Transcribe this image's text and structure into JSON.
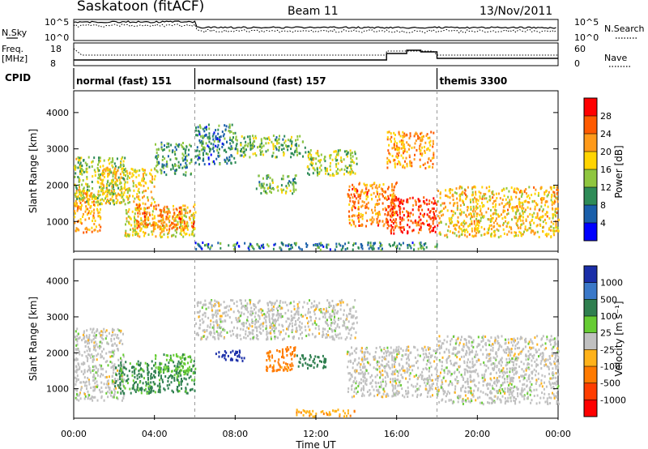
{
  "header": {
    "station": "Saskatoon (fitACF)",
    "beam": "Beam 11",
    "date": "13/Nov/2011"
  },
  "aux_panels": {
    "nsky_label": "N.Sky",
    "nsearch_label": "N.Search",
    "count_ticks": [
      "10^5",
      "10^0"
    ],
    "freq_label_1": "Freq.",
    "freq_label_2": "[MHz]",
    "freq_ticks": [
      "18",
      "8"
    ],
    "nave_ticks": [
      "60",
      "0"
    ],
    "nave_label": "Nave"
  },
  "cpid": {
    "label": "CPID",
    "modes": [
      {
        "name": "normal (fast) 151",
        "start_hour": 0
      },
      {
        "name": "normalsound (fast) 157",
        "start_hour": 6
      },
      {
        "name": "themis 3300",
        "start_hour": 18
      }
    ]
  },
  "axes": {
    "y_label": "Slant Range [km]",
    "y_ticks": [
      1000,
      2000,
      3000,
      4000
    ],
    "x_ticks": [
      "00:00",
      "04:00",
      "08:00",
      "12:00",
      "16:00",
      "20:00",
      "00:00"
    ],
    "x_label": "Time UT"
  },
  "power_scale": {
    "label": "Power [dB]",
    "ticks": [
      "28",
      "24",
      "20",
      "16",
      "12",
      "8",
      "4"
    ],
    "colors": [
      "#ff0000",
      "#ff5a00",
      "#ff9a1a",
      "#ffd400",
      "#8fc63f",
      "#2e8b57",
      "#1a5faa",
      "#0000ff"
    ]
  },
  "velocity_scale": {
    "label": "Velocity [m s⁻¹]",
    "ticks": [
      "1000",
      "500",
      "100",
      "25",
      "-25",
      "-100",
      "-500",
      "-1000"
    ],
    "colors": [
      "#1a2ea8",
      "#3a78c8",
      "#2f7f4f",
      "#66cc33",
      "#c0c0c0",
      "#ffb21a",
      "#ff7a00",
      "#ff3d00",
      "#ff0000"
    ]
  },
  "chart_data": [
    {
      "type": "heatmap",
      "title": "Power",
      "xlabel": "Time UT",
      "ylabel": "Slant Range [km]",
      "x_range_hours": [
        0,
        24
      ],
      "ylim": [
        180,
        4600
      ],
      "color_range": [
        0,
        30
      ],
      "regions": [
        {
          "t": [
            0.0,
            1.3
          ],
          "r": [
            700,
            1900
          ],
          "value": 20
        },
        {
          "t": [
            0.0,
            2.5
          ],
          "r": [
            1500,
            2800
          ],
          "value": 14
        },
        {
          "t": [
            1.3,
            4.0
          ],
          "r": [
            1500,
            2500
          ],
          "value": 17
        },
        {
          "t": [
            2.5,
            6.0
          ],
          "r": [
            600,
            1400
          ],
          "value": 16
        },
        {
          "t": [
            3.0,
            6.0
          ],
          "r": [
            800,
            1500
          ],
          "value": 22
        },
        {
          "t": [
            4.0,
            5.8
          ],
          "r": [
            2300,
            3200
          ],
          "value": 10
        },
        {
          "t": [
            6.0,
            8.0
          ],
          "r": [
            2600,
            3700
          ],
          "value": 8
        },
        {
          "t": [
            8.0,
            11.5
          ],
          "r": [
            2800,
            3400
          ],
          "value": 12
        },
        {
          "t": [
            11.5,
            14.0
          ],
          "r": [
            2300,
            3000
          ],
          "value": 14
        },
        {
          "t": [
            13.5,
            16.0
          ],
          "r": [
            900,
            2100
          ],
          "value": 22
        },
        {
          "t": [
            15.5,
            18.0
          ],
          "r": [
            700,
            1700
          ],
          "value": 26
        },
        {
          "t": [
            9.0,
            11.0
          ],
          "r": [
            1800,
            2300
          ],
          "value": 12
        },
        {
          "t": [
            18.0,
            24.0
          ],
          "r": [
            600,
            2000
          ],
          "value": 18
        },
        {
          "t": [
            15.5,
            17.8
          ],
          "r": [
            2500,
            3500
          ],
          "value": 20
        },
        {
          "t": [
            6.0,
            18.0
          ],
          "r": [
            250,
            450
          ],
          "value": 8
        }
      ]
    },
    {
      "type": "heatmap",
      "title": "Velocity",
      "xlabel": "Time UT",
      "ylabel": "Slant Range [km]",
      "x_range_hours": [
        0,
        24
      ],
      "ylim": [
        180,
        4600
      ],
      "color_range": [
        -1000,
        1000
      ],
      "regions": [
        {
          "t": [
            0.0,
            2.5
          ],
          "r": [
            700,
            2700
          ],
          "value": 0
        },
        {
          "t": [
            2.0,
            6.0
          ],
          "r": [
            900,
            1800
          ],
          "value": 120
        },
        {
          "t": [
            4.0,
            5.8
          ],
          "r": [
            1400,
            2000
          ],
          "value": 80
        },
        {
          "t": [
            6.0,
            14.0
          ],
          "r": [
            2400,
            3500
          ],
          "value": 0
        },
        {
          "t": [
            13.5,
            18.0
          ],
          "r": [
            800,
            2200
          ],
          "value": 0
        },
        {
          "t": [
            9.5,
            11.0
          ],
          "r": [
            1500,
            2200
          ],
          "value": -120
        },
        {
          "t": [
            11.0,
            12.5
          ],
          "r": [
            1600,
            2000
          ],
          "value": 150
        },
        {
          "t": [
            18.0,
            24.0
          ],
          "r": [
            600,
            2500
          ],
          "value": 0
        },
        {
          "t": [
            11.0,
            14.0
          ],
          "r": [
            250,
            450
          ],
          "value": -80
        },
        {
          "t": [
            7.0,
            8.5
          ],
          "r": [
            1800,
            2100
          ],
          "value": 800
        }
      ]
    }
  ]
}
